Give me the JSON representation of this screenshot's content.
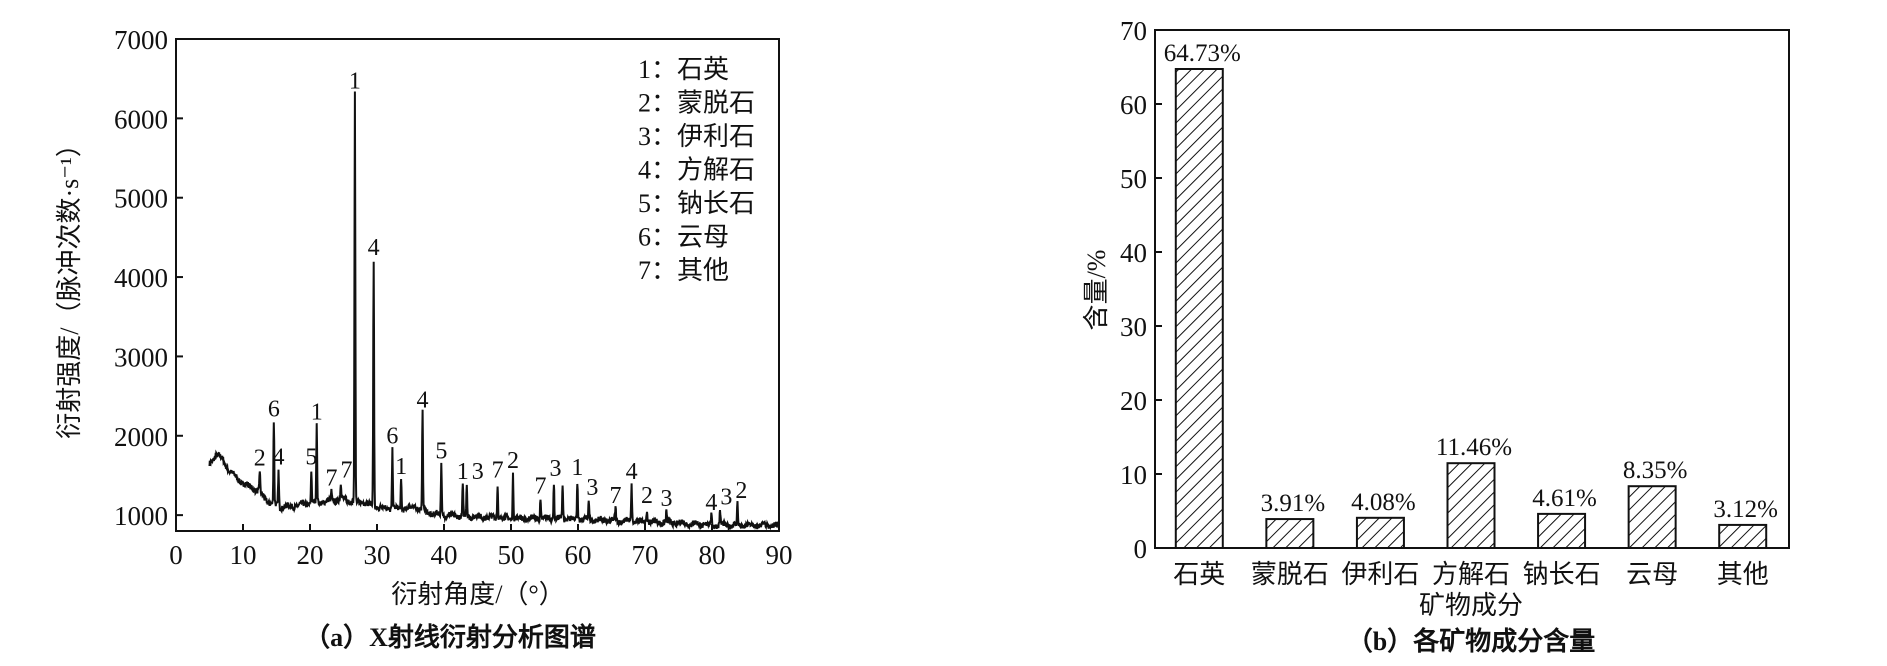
{
  "chart_data": [
    {
      "type": "line",
      "caption": "（a）X射线衍射分析图谱",
      "xlabel": "衍射角度/（°）",
      "ylabel": "衍射强度/（脉冲次数·s⁻¹）",
      "xlim": [
        0,
        90
      ],
      "ylim": [
        800,
        7000
      ],
      "xticks": [
        "0",
        "10",
        "20",
        "30",
        "40",
        "50",
        "60",
        "70",
        "80",
        "90"
      ],
      "yticks": [
        "1000",
        "2000",
        "3000",
        "4000",
        "5000",
        "6000",
        "7000"
      ],
      "grid": false,
      "legend_position": "top-right",
      "legend": [
        "1：石英",
        "2：蒙脱石",
        "3：伊利石",
        "4：方解石",
        "5：钠长石",
        "6：云母",
        "7：其他"
      ],
      "baseline": [
        [
          5,
          1650
        ],
        [
          6,
          1760
        ],
        [
          7,
          1700
        ],
        [
          8,
          1550
        ],
        [
          10,
          1400
        ],
        [
          12,
          1320
        ],
        [
          14,
          1150
        ],
        [
          16,
          1100
        ],
        [
          18,
          1120
        ],
        [
          20,
          1150
        ],
        [
          23,
          1180
        ],
        [
          25,
          1200
        ],
        [
          28,
          1150
        ],
        [
          30,
          1100
        ],
        [
          33,
          1080
        ],
        [
          36,
          1100
        ],
        [
          38,
          1020
        ],
        [
          40,
          1000
        ],
        [
          45,
          980
        ],
        [
          50,
          960
        ],
        [
          55,
          960
        ],
        [
          60,
          950
        ],
        [
          65,
          930
        ],
        [
          70,
          920
        ],
        [
          75,
          900
        ],
        [
          80,
          880
        ],
        [
          85,
          870
        ],
        [
          90,
          870
        ]
      ],
      "peaks": [
        {
          "x": 12.5,
          "y": 1550,
          "label": "2"
        },
        {
          "x": 14.6,
          "y": 2170,
          "label": "6"
        },
        {
          "x": 15.3,
          "y": 1560,
          "label": "4"
        },
        {
          "x": 20.2,
          "y": 1560,
          "label": "5"
        },
        {
          "x": 21.0,
          "y": 2130,
          "label": "1"
        },
        {
          "x": 23.2,
          "y": 1300,
          "label": "7"
        },
        {
          "x": 24.6,
          "y": 1400,
          "label": "7"
        },
        {
          "x": 26.7,
          "y": 6300,
          "label": "1"
        },
        {
          "x": 29.5,
          "y": 4200,
          "label": "4"
        },
        {
          "x": 32.3,
          "y": 1830,
          "label": "6"
        },
        {
          "x": 33.6,
          "y": 1440,
          "label": "1"
        },
        {
          "x": 36.8,
          "y": 2280,
          "label": "4"
        },
        {
          "x": 39.6,
          "y": 1640,
          "label": "5"
        },
        {
          "x": 42.8,
          "y": 1380,
          "label": "1"
        },
        {
          "x": 43.4,
          "y": 1380,
          "label": "3"
        },
        {
          "x": 48.0,
          "y": 1400,
          "label": "7"
        },
        {
          "x": 50.3,
          "y": 1520,
          "label": "2"
        },
        {
          "x": 54.4,
          "y": 1200,
          "label": "7"
        },
        {
          "x": 56.4,
          "y": 1420,
          "label": "3"
        },
        {
          "x": 57.7,
          "y": 1400,
          "label": ""
        },
        {
          "x": 59.9,
          "y": 1430,
          "label": "1"
        },
        {
          "x": 61.6,
          "y": 1180,
          "label": "3"
        },
        {
          "x": 65.6,
          "y": 1080,
          "label": "7"
        },
        {
          "x": 68.0,
          "y": 1380,
          "label": "4"
        },
        {
          "x": 70.3,
          "y": 1080,
          "label": "2"
        },
        {
          "x": 73.2,
          "y": 1040,
          "label": "3"
        },
        {
          "x": 79.9,
          "y": 990,
          "label": "4"
        },
        {
          "x": 81.2,
          "y": 1060,
          "label": "3"
        },
        {
          "x": 83.8,
          "y": 1140,
          "label": "2"
        }
      ]
    },
    {
      "type": "bar",
      "caption": "（b）各矿物成分含量",
      "xlabel": "矿物成分",
      "ylabel": "含量/%",
      "ylim": [
        0,
        70
      ],
      "yticks": [
        "0",
        "10",
        "20",
        "30",
        "40",
        "50",
        "60",
        "70"
      ],
      "grid": false,
      "fill": "diagonal-hatch",
      "categories": [
        "石英",
        "蒙脱石",
        "伊利石",
        "方解石",
        "钠长石",
        "云母",
        "其他"
      ],
      "values": [
        64.73,
        3.91,
        4.08,
        11.46,
        4.61,
        8.35,
        3.12
      ],
      "data_labels": [
        "64.73%",
        "3.91%",
        "4.08%",
        "11.46%",
        "4.61%",
        "8.35%",
        "3.12%"
      ]
    }
  ]
}
